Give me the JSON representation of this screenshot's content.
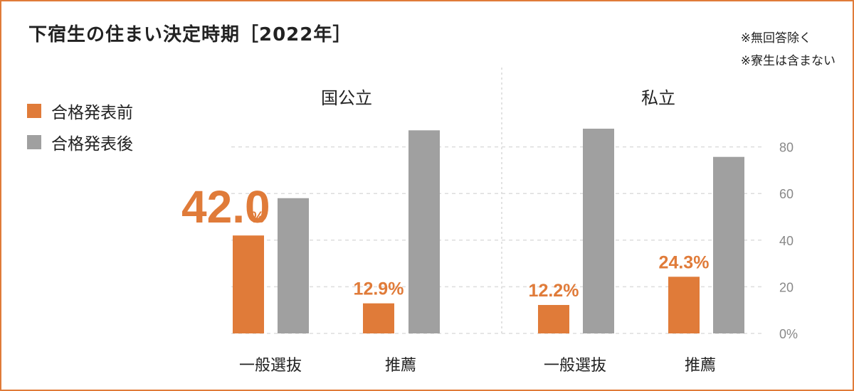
{
  "chart_data": {
    "type": "bar",
    "title": "下宿生の住まい決定時期［2022年］",
    "notes": [
      "※無回答除く",
      "※寮生は含まない"
    ],
    "groups": [
      {
        "name": "国公立",
        "categories": [
          "一般選抜",
          "推薦"
        ]
      },
      {
        "name": "私立",
        "categories": [
          "一般選抜",
          "推薦"
        ]
      }
    ],
    "series": [
      {
        "name": "合格発表前",
        "color": "#e07b39",
        "values": [
          42.0,
          12.9,
          12.2,
          24.3
        ],
        "labels": [
          "42.0",
          "12.9%",
          "12.2%",
          "24.3%"
        ]
      },
      {
        "name": "合格発表後",
        "color": "#a0a0a0",
        "values": [
          58.0,
          87.1,
          87.8,
          75.7
        ]
      }
    ],
    "ylim": [
      0,
      100
    ],
    "yticks": [
      0,
      20,
      40,
      60,
      80
    ],
    "ytick_labels": [
      "0%",
      "20",
      "40",
      "60",
      "80"
    ],
    "grid": true,
    "legend_position": "top-left"
  }
}
